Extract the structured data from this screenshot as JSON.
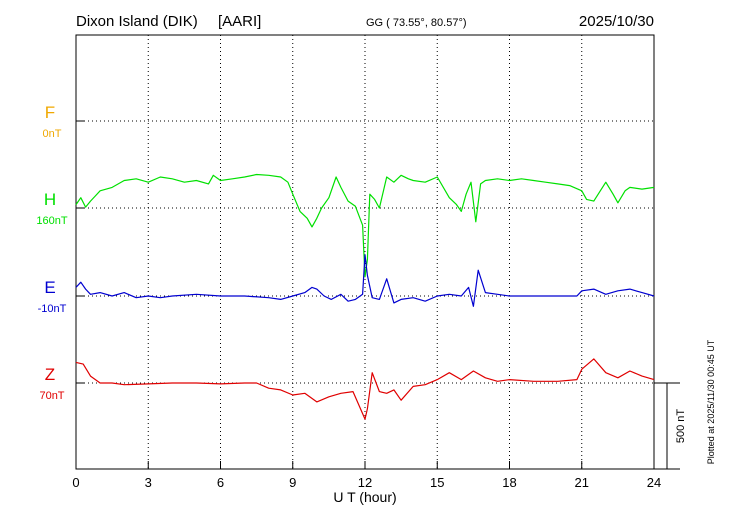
{
  "header": {
    "station": "Dixon Island (DIK)",
    "institute": "[AARI]",
    "coords": "GG ( 73.55°,  80.57°)",
    "date": "2025/10/30"
  },
  "footer": {
    "plotted": "Plotted at 2025/11/30 00:45 UT"
  },
  "scale": {
    "label": "500 nT",
    "span_nT": 500
  },
  "colors": {
    "F": "#f0a800",
    "H": "#00e000",
    "E": "#0000d0",
    "Z": "#e00000",
    "axis": "#000000"
  },
  "chart_data": {
    "type": "line",
    "xlabel": "U T (hour)",
    "xlim": [
      0,
      24
    ],
    "x_ticks": [
      "0",
      "3",
      "6",
      "9",
      "12",
      "15",
      "18",
      "21",
      "24"
    ],
    "components": [
      {
        "name": "F",
        "baseline_label": "0nT"
      },
      {
        "name": "H",
        "baseline_label": "160nT"
      },
      {
        "name": "E",
        "baseline_label": "-10nT"
      },
      {
        "name": "Z",
        "baseline_label": "70nT"
      }
    ],
    "series": [
      {
        "name": "H",
        "x": [
          0,
          0.2,
          0.4,
          0.6,
          0.8,
          1.0,
          1.5,
          2.0,
          2.5,
          3.0,
          3.5,
          4.0,
          4.5,
          5.0,
          5.5,
          5.7,
          6.0,
          6.5,
          7.0,
          7.5,
          8.0,
          8.5,
          8.8,
          9.0,
          9.3,
          9.6,
          9.8,
          10.0,
          10.2,
          10.5,
          10.8,
          11.0,
          11.3,
          11.6,
          11.9,
          12.0,
          12.1,
          12.2,
          12.4,
          12.6,
          12.9,
          13.2,
          13.5,
          13.8,
          14.0,
          14.5,
          15.0,
          15.5,
          15.8,
          16.0,
          16.2,
          16.4,
          16.6,
          16.8,
          17.0,
          17.5,
          18.0,
          18.5,
          19.0,
          19.5,
          20.0,
          20.5,
          21.0,
          21.2,
          21.5,
          22.0,
          22.3,
          22.5,
          22.8,
          23.0,
          23.5,
          24.0
        ],
        "values": [
          20,
          60,
          5,
          40,
          70,
          100,
          120,
          160,
          170,
          150,
          180,
          170,
          150,
          160,
          140,
          190,
          160,
          170,
          180,
          195,
          190,
          180,
          150,
          80,
          -20,
          -60,
          -110,
          -60,
          0,
          60,
          180,
          120,
          40,
          10,
          -100,
          -400,
          -300,
          80,
          50,
          0,
          180,
          150,
          190,
          170,
          160,
          150,
          180,
          60,
          20,
          -20,
          80,
          150,
          -80,
          140,
          160,
          170,
          160,
          170,
          160,
          150,
          140,
          130,
          100,
          50,
          40,
          150,
          80,
          30,
          100,
          120,
          110,
          120
        ]
      },
      {
        "name": "E",
        "x": [
          0,
          0.2,
          0.4,
          0.6,
          1.0,
          1.5,
          2.0,
          2.5,
          3.0,
          3.5,
          4.0,
          5.0,
          6.0,
          7.0,
          8.0,
          8.5,
          9.0,
          9.5,
          9.8,
          10.0,
          10.3,
          10.6,
          11.0,
          11.3,
          11.6,
          11.9,
          12.0,
          12.1,
          12.3,
          12.6,
          12.9,
          13.2,
          13.5,
          14.0,
          14.5,
          15.0,
          15.5,
          16.0,
          16.3,
          16.5,
          16.7,
          17.0,
          17.5,
          18.0,
          19.0,
          20.0,
          20.8,
          21.0,
          21.5,
          22.0,
          22.5,
          23.0,
          23.5,
          24.0
        ],
        "values": [
          50,
          80,
          40,
          10,
          20,
          0,
          20,
          -10,
          0,
          -10,
          0,
          10,
          0,
          0,
          -10,
          -20,
          0,
          20,
          50,
          40,
          0,
          -20,
          10,
          -30,
          -20,
          10,
          240,
          120,
          -10,
          -20,
          100,
          -40,
          -20,
          -10,
          -30,
          0,
          10,
          0,
          50,
          -60,
          150,
          20,
          10,
          0,
          0,
          0,
          0,
          30,
          40,
          10,
          30,
          40,
          20,
          0
        ]
      },
      {
        "name": "Z",
        "x": [
          0,
          0.3,
          0.6,
          1.0,
          1.5,
          2.0,
          3.0,
          4.0,
          5.0,
          6.0,
          7.0,
          7.5,
          8.0,
          8.5,
          9.0,
          9.5,
          10.0,
          10.5,
          11.0,
          11.5,
          12.0,
          12.1,
          12.3,
          12.6,
          12.9,
          13.2,
          13.5,
          14.0,
          14.5,
          15.0,
          15.5,
          16.0,
          16.5,
          17.0,
          17.5,
          18.0,
          19.0,
          20.0,
          20.8,
          21.0,
          21.5,
          22.0,
          22.5,
          23.0,
          23.5,
          24.0
        ],
        "values": [
          120,
          110,
          40,
          0,
          0,
          -10,
          -5,
          0,
          0,
          -5,
          0,
          0,
          -30,
          -40,
          -70,
          -60,
          -110,
          -80,
          -60,
          -50,
          -210,
          -150,
          60,
          -50,
          -60,
          -40,
          -100,
          -20,
          -10,
          20,
          60,
          20,
          70,
          30,
          10,
          20,
          10,
          10,
          20,
          80,
          140,
          60,
          30,
          70,
          40,
          20
        ]
      }
    ]
  }
}
